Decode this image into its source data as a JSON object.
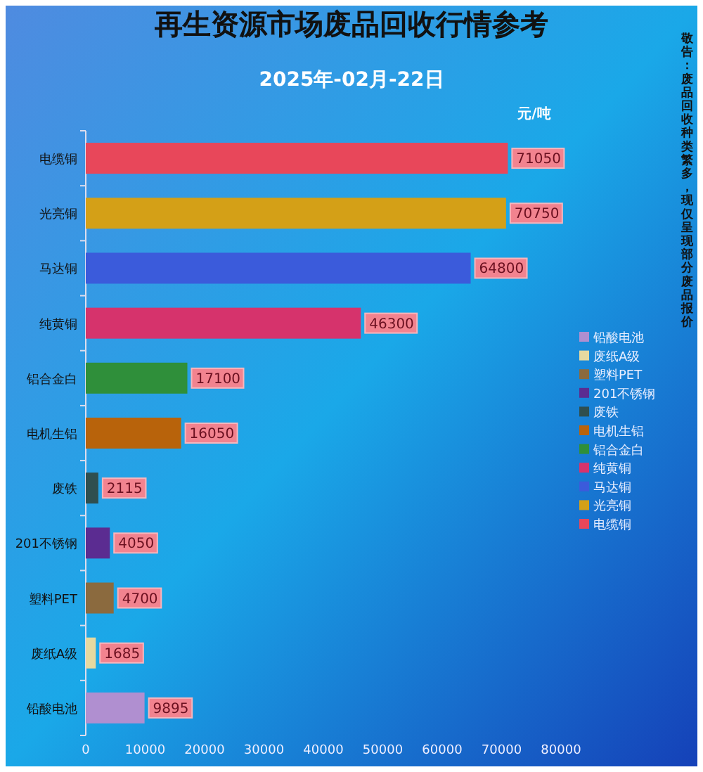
{
  "chart_data": {
    "type": "bar",
    "orientation": "horizontal",
    "stacked": true,
    "title": "再生资源市场废品回收行情参考",
    "subtitle": "2025年-02月-22日",
    "xlabel": "元/吨",
    "categories": [
      "电缆铜",
      "光亮铜",
      "马达铜",
      "纯黄铜",
      "铝合金白",
      "电机生铝",
      "废铁",
      "201不锈钢",
      "塑料PET",
      "废纸A级",
      "铅酸电池"
    ],
    "series": [
      {
        "name": "电缆铜",
        "color": "#e8475a",
        "values": [
          71050,
          null,
          null,
          null,
          null,
          null,
          null,
          null,
          null,
          null,
          null
        ]
      },
      {
        "name": "光亮铜",
        "color": "#d4a017",
        "values": [
          null,
          70750,
          null,
          null,
          null,
          null,
          null,
          null,
          null,
          null,
          null
        ]
      },
      {
        "name": "马达铜",
        "color": "#3b5bdb",
        "values": [
          null,
          null,
          64800,
          null,
          null,
          null,
          null,
          null,
          null,
          null,
          null
        ]
      },
      {
        "name": "纯黄铜",
        "color": "#d6336c",
        "values": [
          null,
          null,
          null,
          46300,
          null,
          null,
          null,
          null,
          null,
          null,
          null
        ]
      },
      {
        "name": "铝合金白",
        "color": "#2f8f3a",
        "values": [
          null,
          null,
          null,
          null,
          17100,
          null,
          null,
          null,
          null,
          null,
          null
        ]
      },
      {
        "name": "电机生铝",
        "color": "#b8630b",
        "values": [
          null,
          null,
          null,
          null,
          null,
          16050,
          null,
          null,
          null,
          null,
          null
        ]
      },
      {
        "name": "废铁",
        "color": "#2f4f4f",
        "values": [
          null,
          null,
          null,
          null,
          null,
          null,
          2115,
          null,
          null,
          null,
          null
        ]
      },
      {
        "name": "201不锈钢",
        "color": "#5b2c91",
        "values": [
          null,
          null,
          null,
          null,
          null,
          null,
          null,
          4050,
          null,
          null,
          null
        ]
      },
      {
        "name": "塑料PET",
        "color": "#8b6a3e",
        "values": [
          null,
          null,
          null,
          null,
          null,
          null,
          null,
          null,
          4700,
          null,
          null
        ]
      },
      {
        "name": "废纸A级",
        "color": "#e6d9a0",
        "values": [
          null,
          null,
          null,
          null,
          null,
          null,
          null,
          null,
          null,
          1685,
          null
        ]
      },
      {
        "name": "铅酸电池",
        "color": "#b08fd0",
        "values": [
          null,
          null,
          null,
          null,
          null,
          null,
          null,
          null,
          null,
          null,
          9895
        ]
      }
    ],
    "xlim": [
      0,
      80000
    ],
    "xticks": [
      0,
      10000,
      20000,
      30000,
      40000,
      50000,
      60000,
      70000,
      80000
    ],
    "data_labels": true,
    "legend": "right",
    "grid": false,
    "annotations": [
      "敬告：废品回收种类繁多，现仅呈现部分废品报价"
    ]
  }
}
